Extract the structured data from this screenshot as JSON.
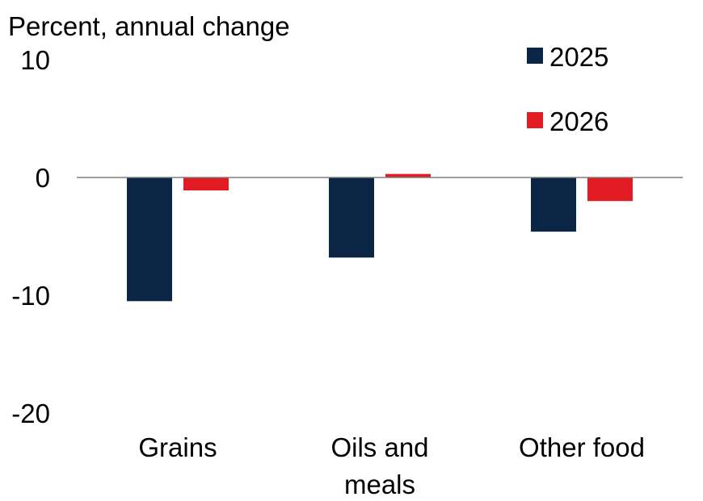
{
  "chart_data": {
    "type": "bar",
    "title": "",
    "ylabel": "Percent, annual change",
    "xlabel": "",
    "categories": [
      [
        "Grains"
      ],
      [
        "Oils and",
        "meals"
      ],
      [
        "Other food"
      ]
    ],
    "series": [
      {
        "name": "2025",
        "color": "#0b2545",
        "values": [
          -10.5,
          -6.8,
          -4.6
        ]
      },
      {
        "name": "2026",
        "color": "#e31b23",
        "values": [
          -1.1,
          0.3,
          -2.0
        ]
      }
    ],
    "ylim": [
      -20,
      10
    ],
    "yticks": [
      "10",
      "0",
      "-10",
      "-20"
    ],
    "grid": false,
    "legend": "top-right"
  }
}
